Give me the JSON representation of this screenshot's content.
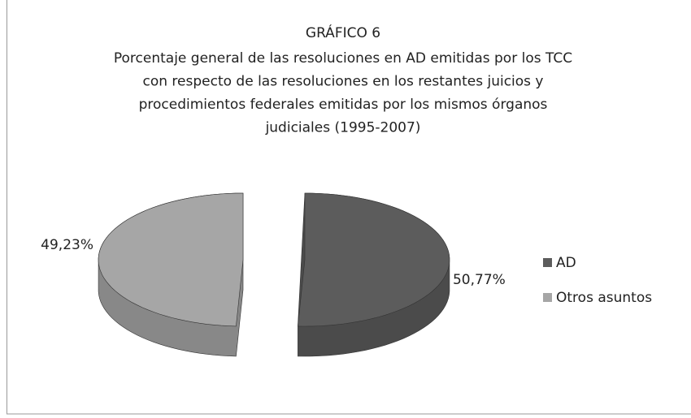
{
  "chart_data": {
    "type": "pie3d",
    "title": "GRÁFICO 6",
    "subtitle": [
      "Porcentaje general de las resoluciones en AD emitidas por los TCC",
      "con respecto de las resoluciones en los restantes juicios y",
      "procedimientos federales emitidas por los mismos órganos",
      "judiciales (1995-2007)"
    ],
    "categories": [
      "AD",
      "Otros asuntos"
    ],
    "values": [
      50.77,
      49.23
    ],
    "value_labels": [
      "50,77%",
      "49,23%"
    ],
    "colors": [
      "#5c5c5c",
      "#a6a6a6"
    ],
    "legend": "right"
  }
}
